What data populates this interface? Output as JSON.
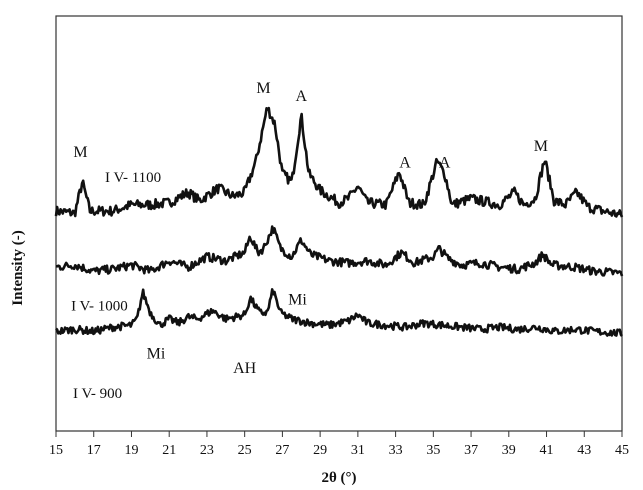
{
  "chart_data": {
    "type": "line",
    "title": "",
    "xlabel": "2θ (°)",
    "ylabel": "Intensity (-)",
    "xlim": [
      15,
      45
    ],
    "x_ticks": [
      15,
      17,
      19,
      21,
      23,
      25,
      27,
      29,
      31,
      33,
      35,
      37,
      39,
      41,
      43,
      45
    ],
    "grid": false,
    "legend": "none",
    "y_ticks_shown": false,
    "series": [
      {
        "name": "I V- 1100",
        "baseline": 0.52,
        "noise": 0.012,
        "points": [
          [
            15,
            0.53
          ],
          [
            16,
            0.525
          ],
          [
            16.4,
            0.6
          ],
          [
            16.8,
            0.53
          ],
          [
            18,
            0.53
          ],
          [
            19,
            0.545
          ],
          [
            20,
            0.545
          ],
          [
            21,
            0.55
          ],
          [
            22,
            0.575
          ],
          [
            22.6,
            0.555
          ],
          [
            23.6,
            0.585
          ],
          [
            24.4,
            0.565
          ],
          [
            25,
            0.575
          ],
          [
            25.6,
            0.65
          ],
          [
            26.2,
            0.78
          ],
          [
            26.6,
            0.74
          ],
          [
            27,
            0.62
          ],
          [
            27.5,
            0.6
          ],
          [
            28,
            0.76
          ],
          [
            28.4,
            0.62
          ],
          [
            29,
            0.58
          ],
          [
            30,
            0.55
          ],
          [
            30.5,
            0.56
          ],
          [
            31,
            0.59
          ],
          [
            31.5,
            0.55
          ],
          [
            32.5,
            0.545
          ],
          [
            33.2,
            0.625
          ],
          [
            33.7,
            0.55
          ],
          [
            34.5,
            0.545
          ],
          [
            35.2,
            0.65
          ],
          [
            35.6,
            0.62
          ],
          [
            36,
            0.545
          ],
          [
            37,
            0.56
          ],
          [
            38.5,
            0.545
          ],
          [
            39.3,
            0.575
          ],
          [
            39.8,
            0.545
          ],
          [
            40.4,
            0.56
          ],
          [
            40.9,
            0.655
          ],
          [
            41.4,
            0.555
          ],
          [
            42,
            0.545
          ],
          [
            42.6,
            0.575
          ],
          [
            43.2,
            0.54
          ],
          [
            44,
            0.53
          ],
          [
            45,
            0.52
          ]
        ]
      },
      {
        "name": "I V- 1000",
        "baseline": 0.38,
        "noise": 0.01,
        "points": [
          [
            15,
            0.395
          ],
          [
            16,
            0.4
          ],
          [
            17,
            0.385
          ],
          [
            18,
            0.39
          ],
          [
            19,
            0.4
          ],
          [
            20,
            0.385
          ],
          [
            21,
            0.41
          ],
          [
            22,
            0.395
          ],
          [
            23,
            0.42
          ],
          [
            24,
            0.41
          ],
          [
            25,
            0.43
          ],
          [
            25.3,
            0.47
          ],
          [
            25.7,
            0.43
          ],
          [
            26,
            0.44
          ],
          [
            26.5,
            0.49
          ],
          [
            26.9,
            0.44
          ],
          [
            27.5,
            0.42
          ],
          [
            28,
            0.46
          ],
          [
            28.5,
            0.425
          ],
          [
            29.5,
            0.41
          ],
          [
            30.5,
            0.405
          ],
          [
            31.5,
            0.41
          ],
          [
            32.5,
            0.4
          ],
          [
            33.3,
            0.43
          ],
          [
            34,
            0.405
          ],
          [
            35,
            0.42
          ],
          [
            35.3,
            0.44
          ],
          [
            35.8,
            0.415
          ],
          [
            36.5,
            0.4
          ],
          [
            37.5,
            0.405
          ],
          [
            38.5,
            0.395
          ],
          [
            39.5,
            0.39
          ],
          [
            40.4,
            0.405
          ],
          [
            40.8,
            0.425
          ],
          [
            41.3,
            0.4
          ],
          [
            42.5,
            0.395
          ],
          [
            43.5,
            0.385
          ],
          [
            45,
            0.38
          ]
        ]
      },
      {
        "name": "I V- 900",
        "baseline": 0.235,
        "noise": 0.009,
        "points": [
          [
            15,
            0.24
          ],
          [
            16,
            0.245
          ],
          [
            17,
            0.24
          ],
          [
            18,
            0.25
          ],
          [
            19,
            0.255
          ],
          [
            19.3,
            0.27
          ],
          [
            19.6,
            0.335
          ],
          [
            20,
            0.285
          ],
          [
            20.5,
            0.255
          ],
          [
            21,
            0.27
          ],
          [
            21.5,
            0.26
          ],
          [
            22,
            0.275
          ],
          [
            22.5,
            0.27
          ],
          [
            23.3,
            0.29
          ],
          [
            24,
            0.27
          ],
          [
            25,
            0.28
          ],
          [
            25.3,
            0.32
          ],
          [
            25.8,
            0.285
          ],
          [
            26.2,
            0.285
          ],
          [
            26.5,
            0.34
          ],
          [
            26.9,
            0.285
          ],
          [
            27.5,
            0.27
          ],
          [
            28.5,
            0.26
          ],
          [
            29.5,
            0.255
          ],
          [
            30.5,
            0.265
          ],
          [
            31,
            0.28
          ],
          [
            31.5,
            0.26
          ],
          [
            32.5,
            0.255
          ],
          [
            33.5,
            0.25
          ],
          [
            34.5,
            0.26
          ],
          [
            35.5,
            0.255
          ],
          [
            36.5,
            0.25
          ],
          [
            37.5,
            0.245
          ],
          [
            38.5,
            0.25
          ],
          [
            39.5,
            0.245
          ],
          [
            40.5,
            0.25
          ],
          [
            41.5,
            0.24
          ],
          [
            42.5,
            0.245
          ],
          [
            43.5,
            0.24
          ],
          [
            45,
            0.235
          ]
        ]
      }
    ],
    "curve_labels": [
      {
        "text": "I V- 1100",
        "x": 17.6,
        "y": 0.6
      },
      {
        "text": "I V- 1000",
        "x": 15.8,
        "y": 0.29
      },
      {
        "text": "I V- 900",
        "x": 15.9,
        "y": 0.08
      }
    ],
    "annotations": [
      {
        "text": "M",
        "x": 16.3,
        "y": 0.66
      },
      {
        "text": "M",
        "x": 26.0,
        "y": 0.815
      },
      {
        "text": "A",
        "x": 28.0,
        "y": 0.795
      },
      {
        "text": "A",
        "x": 33.5,
        "y": 0.635
      },
      {
        "text": "A",
        "x": 35.6,
        "y": 0.635
      },
      {
        "text": "M",
        "x": 40.7,
        "y": 0.675
      },
      {
        "text": "Mi",
        "x": 27.8,
        "y": 0.305
      },
      {
        "text": "Mi",
        "x": 20.3,
        "y": 0.175
      },
      {
        "text": "AH",
        "x": 25.0,
        "y": 0.14
      }
    ]
  }
}
